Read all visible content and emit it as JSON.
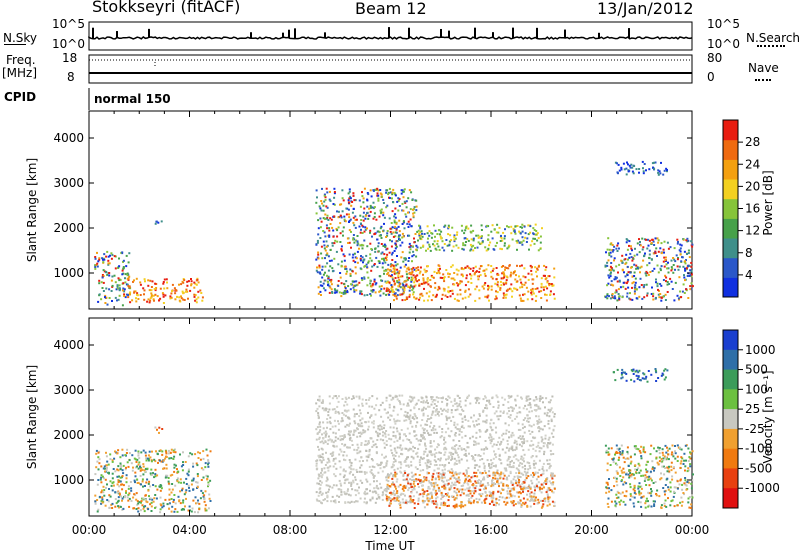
{
  "header": {
    "station": "Stokkseyri (fitACF)",
    "beam": "Beam 12",
    "date": "13/Jan/2012"
  },
  "summary_panels": {
    "nsky_label": "N.Sky",
    "nsearch_label": "N.Search",
    "nsky_ticks": [
      "10^5",
      "10^0"
    ],
    "freq_label": "Freq.",
    "freq_unit": "[MHz]",
    "freq_ticks": [
      "18",
      "8"
    ],
    "nave_label": "Nave",
    "nave_ticks": [
      "80",
      "0"
    ],
    "cpid_label": "CPID",
    "cpid_mode": "normal 150"
  },
  "chart_data": [
    {
      "type": "heatmap",
      "panel": "power",
      "ylabel": "Slant Range [km]",
      "xlabel": "",
      "y_ticks": [
        1000,
        2000,
        3000,
        4000
      ],
      "ylim": [
        200,
        4600
      ],
      "xlim_hours": [
        0,
        24
      ],
      "colorbar": {
        "label": "Power [dB]",
        "ticks": [
          "4",
          "8",
          "12",
          "16",
          "20",
          "24",
          "28"
        ],
        "colors": [
          "#1030e0",
          "#2a57c9",
          "#3f8f8a",
          "#47a14a",
          "#86c43a",
          "#f3d020",
          "#f4a010",
          "#ef6a10",
          "#e81c10"
        ]
      },
      "regions": [
        {
          "t0": 0.2,
          "t1": 1.6,
          "r0": 300,
          "r1": 1500,
          "level": "mixed"
        },
        {
          "t0": 1.5,
          "t1": 4.5,
          "r0": 350,
          "r1": 900,
          "level": "strong"
        },
        {
          "t0": 2.6,
          "t1": 2.9,
          "r0": 2050,
          "r1": 2250,
          "level": "weak"
        },
        {
          "t0": 9.0,
          "t1": 13.0,
          "r0": 500,
          "r1": 2900,
          "level": "mixed"
        },
        {
          "t0": 11.8,
          "t1": 18.5,
          "r0": 400,
          "r1": 1200,
          "level": "strong"
        },
        {
          "t0": 13.0,
          "t1": 18.0,
          "r0": 1500,
          "r1": 2100,
          "level": "medium"
        },
        {
          "t0": 20.5,
          "t1": 24.0,
          "r0": 400,
          "r1": 1800,
          "level": "mixed"
        },
        {
          "t0": 20.8,
          "t1": 23.0,
          "r0": 3200,
          "r1": 3500,
          "level": "weak"
        }
      ]
    },
    {
      "type": "heatmap",
      "panel": "velocity",
      "ylabel": "Slant Range [km]",
      "xlabel": "Time UT",
      "y_ticks": [
        1000,
        2000,
        3000,
        4000
      ],
      "ylim": [
        200,
        4600
      ],
      "x_ticks": [
        "00:00",
        "04:00",
        "08:00",
        "12:00",
        "16:00",
        "20:00",
        "00:00"
      ],
      "xlim_hours": [
        0,
        24
      ],
      "colorbar": {
        "label": "Velocity [m s⁻¹]",
        "ticks": [
          "1000",
          "500",
          "100",
          "25",
          "-25",
          "-100",
          "-500",
          "-1000"
        ],
        "colors": [
          "#1a3fcf",
          "#2f6fa8",
          "#3c9c5a",
          "#6cc040",
          "#c8c8c0",
          "#f0a030",
          "#f07a10",
          "#e84010",
          "#e01010"
        ]
      },
      "regions": [
        {
          "t0": 0.2,
          "t1": 4.8,
          "r0": 300,
          "r1": 1700,
          "level": "mixed"
        },
        {
          "t0": 2.6,
          "t1": 2.9,
          "r0": 2050,
          "r1": 2250,
          "level": "orange"
        },
        {
          "t0": 9.0,
          "t1": 18.5,
          "r0": 500,
          "r1": 2900,
          "level": "gray"
        },
        {
          "t0": 11.8,
          "t1": 18.5,
          "r0": 400,
          "r1": 1200,
          "level": "orange"
        },
        {
          "t0": 20.5,
          "t1": 24.0,
          "r0": 400,
          "r1": 1800,
          "level": "mixed"
        },
        {
          "t0": 20.8,
          "t1": 23.0,
          "r0": 3200,
          "r1": 3500,
          "level": "blue"
        }
      ]
    }
  ]
}
